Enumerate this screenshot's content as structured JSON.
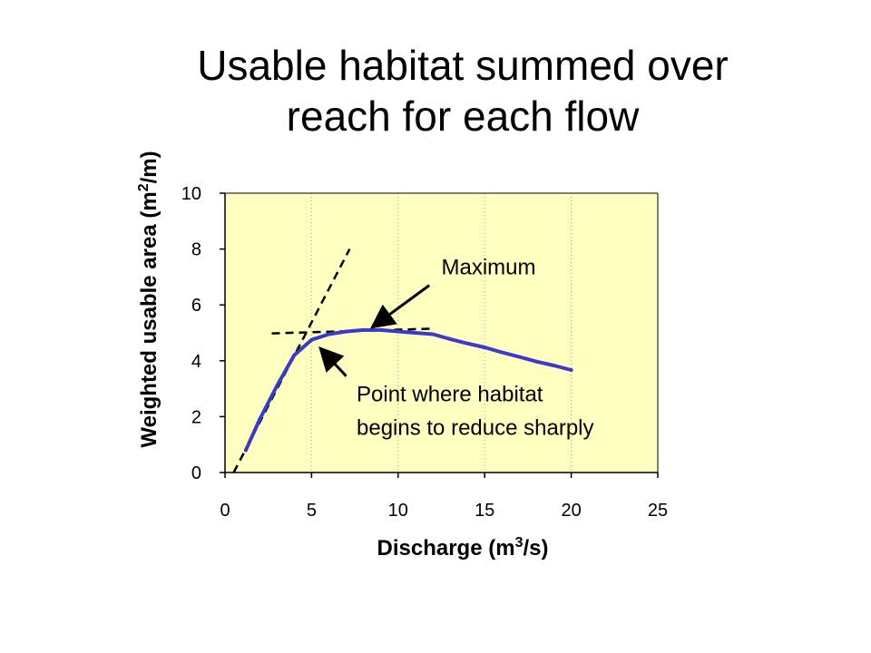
{
  "title_line1": "Usable habitat summed over",
  "title_line2": "reach for each flow",
  "chart_data": {
    "type": "line",
    "xlabel_text": "Discharge (m",
    "xlabel_sup": "3",
    "xlabel_tail": "/s)",
    "ylabel_text": "Weighted usable area (m",
    "ylabel_sup": "2",
    "ylabel_tail": "/m)",
    "xlim": [
      0,
      25
    ],
    "ylim": [
      0,
      10
    ],
    "xticks": [
      0,
      5,
      10,
      15,
      20,
      25
    ],
    "yticks": [
      0,
      2,
      4,
      6,
      8,
      10
    ],
    "grid": true,
    "plot_background": "#ffffc0",
    "grid_color": "#a0a0a0",
    "series": [
      {
        "color": "#3a3acc",
        "x": [
          1.2,
          2,
          3,
          4,
          5,
          6,
          7,
          8,
          9,
          10,
          11,
          12,
          13,
          14,
          15,
          16,
          17,
          18,
          19,
          20
        ],
        "y": [
          0.8,
          1.9,
          3.1,
          4.2,
          4.75,
          4.95,
          5.05,
          5.1,
          5.1,
          5.05,
          5.0,
          4.95,
          4.78,
          4.62,
          4.48,
          4.3,
          4.14,
          3.97,
          3.83,
          3.67
        ]
      }
    ],
    "reference_lines": [
      {
        "style": "dashed",
        "color": "#000000",
        "x": [
          0.5,
          7.2
        ],
        "y": [
          0.0,
          8.0
        ]
      },
      {
        "style": "dashed",
        "color": "#000000",
        "x": [
          2.7,
          12
        ],
        "y": [
          4.98,
          5.15
        ]
      }
    ],
    "annotations": [
      {
        "text": "Maximum",
        "text_at": [
          12.5,
          7.1
        ],
        "arrow_from": [
          11.8,
          6.7
        ],
        "arrow_to": [
          8.5,
          5.2
        ]
      },
      {
        "text": "Point where habitat",
        "text_at": [
          7.6,
          2.55
        ],
        "arrow_from": [
          7.0,
          3.45
        ],
        "arrow_to": [
          5.5,
          4.45
        ]
      },
      {
        "text": "begins to reduce sharply",
        "text_at": [
          7.6,
          1.35
        ]
      }
    ]
  }
}
